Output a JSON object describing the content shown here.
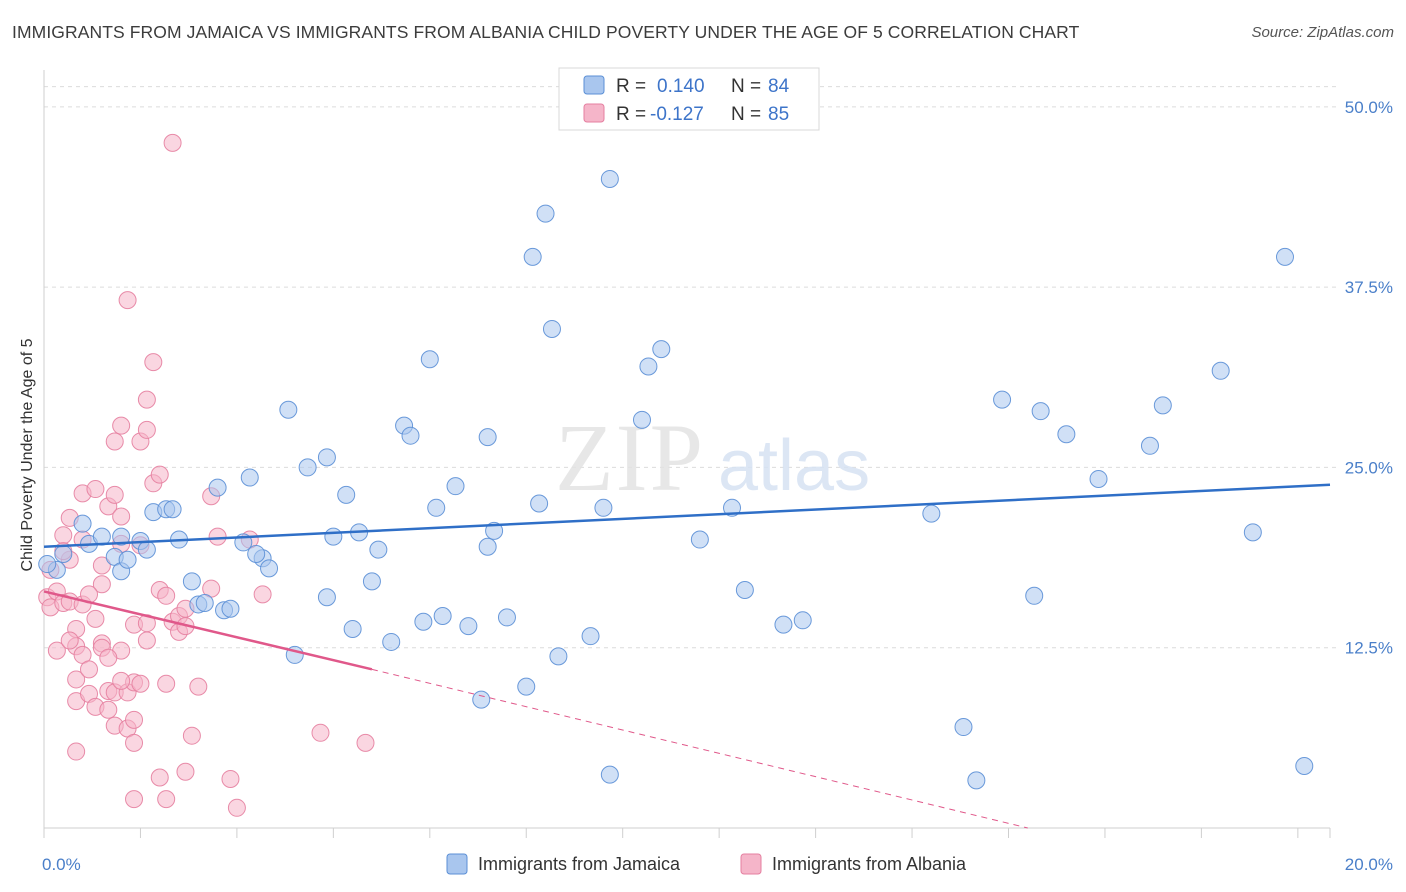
{
  "title": "IMMIGRANTS FROM JAMAICA VS IMMIGRANTS FROM ALBANIA CHILD POVERTY UNDER THE AGE OF 5 CORRELATION CHART",
  "source": "Source: ZipAtlas.com",
  "watermark": {
    "zip": "ZIP",
    "atlas": "atlas"
  },
  "legend": {
    "jamaica": {
      "r_label": "R = ",
      "r_value": "0.140",
      "n_label": "N = ",
      "n_value": "84"
    },
    "albania": {
      "r_label": "R = ",
      "r_value": "-0.127",
      "n_label": "N = ",
      "n_value": "85"
    }
  },
  "colors": {
    "jamaica_fill": "#a9c6ee",
    "jamaica_stroke": "#5b8fd6",
    "jamaica_line": "#2f6fc7",
    "albania_fill": "#f5b5c9",
    "albania_stroke": "#e57fa0",
    "albania_line": "#e0588a",
    "tick_label": "#4a7fc9",
    "grid": "#dcdcdc"
  },
  "chart_data": {
    "type": "scatter",
    "title": "IMMIGRANTS FROM JAMAICA VS IMMIGRANTS FROM ALBANIA CHILD POVERTY UNDER THE AGE OF 5 CORRELATION CHART",
    "xlabel": "",
    "ylabel": "Child Poverty Under the Age of 5",
    "xlim": [
      0,
      20
    ],
    "ylim": [
      0,
      52
    ],
    "x_tick_labels": [
      {
        "value": 0,
        "label": "0.0%"
      },
      {
        "value": 20,
        "label": "20.0%"
      }
    ],
    "y_tick_labels": [
      {
        "value": 12.5,
        "label": "12.5%"
      },
      {
        "value": 25,
        "label": "25.0%"
      },
      {
        "value": 37.5,
        "label": "37.5%"
      },
      {
        "value": 50,
        "label": "50.0%"
      }
    ],
    "grid": true,
    "legend_position": "top-center",
    "series": [
      {
        "name": "Immigrants from Jamaica",
        "trendline": {
          "x": [
            0,
            20
          ],
          "y": [
            19.5,
            23.8
          ]
        },
        "points": [
          [
            0.2,
            17.9
          ],
          [
            0.3,
            19.0
          ],
          [
            0.6,
            21.1
          ],
          [
            0.7,
            19.7
          ],
          [
            0.9,
            20.2
          ],
          [
            1.1,
            18.8
          ],
          [
            1.2,
            17.8
          ],
          [
            1.2,
            20.2
          ],
          [
            1.5,
            19.9
          ],
          [
            1.6,
            19.3
          ],
          [
            1.7,
            21.9
          ],
          [
            1.9,
            22.1
          ],
          [
            2.0,
            22.1
          ],
          [
            2.1,
            20.0
          ],
          [
            2.3,
            17.1
          ],
          [
            2.4,
            15.5
          ],
          [
            2.5,
            15.6
          ],
          [
            2.8,
            15.1
          ],
          [
            2.9,
            15.2
          ],
          [
            2.7,
            23.6
          ],
          [
            3.1,
            19.8
          ],
          [
            3.2,
            24.3
          ],
          [
            3.4,
            18.7
          ],
          [
            3.5,
            18.0
          ],
          [
            3.8,
            29.0
          ],
          [
            3.9,
            12.0
          ],
          [
            4.1,
            25.0
          ],
          [
            4.4,
            16.0
          ],
          [
            4.4,
            25.7
          ],
          [
            4.5,
            20.2
          ],
          [
            4.7,
            23.1
          ],
          [
            4.8,
            13.8
          ],
          [
            4.9,
            20.5
          ],
          [
            5.1,
            17.1
          ],
          [
            5.2,
            19.3
          ],
          [
            5.4,
            12.9
          ],
          [
            5.6,
            27.9
          ],
          [
            5.7,
            27.2
          ],
          [
            5.9,
            14.3
          ],
          [
            6.0,
            32.5
          ],
          [
            6.1,
            22.2
          ],
          [
            6.2,
            14.7
          ],
          [
            6.4,
            23.7
          ],
          [
            6.6,
            14.0
          ],
          [
            6.9,
            19.5
          ],
          [
            6.9,
            27.1
          ],
          [
            7.0,
            20.6
          ],
          [
            7.2,
            14.6
          ],
          [
            7.5,
            9.8
          ],
          [
            7.6,
            39.6
          ],
          [
            7.7,
            22.5
          ],
          [
            7.8,
            42.6
          ],
          [
            7.9,
            34.6
          ],
          [
            8.0,
            11.9
          ],
          [
            8.5,
            13.3
          ],
          [
            8.7,
            22.2
          ],
          [
            8.8,
            3.7
          ],
          [
            8.8,
            45.0
          ],
          [
            9.3,
            28.3
          ],
          [
            9.4,
            32.0
          ],
          [
            9.6,
            33.2
          ],
          [
            10.2,
            20.0
          ],
          [
            10.7,
            22.2
          ],
          [
            10.9,
            16.5
          ],
          [
            11.5,
            14.1
          ],
          [
            11.8,
            14.4
          ],
          [
            13.8,
            21.8
          ],
          [
            14.3,
            7.0
          ],
          [
            14.5,
            3.3
          ],
          [
            14.9,
            29.7
          ],
          [
            15.4,
            16.1
          ],
          [
            15.5,
            28.9
          ],
          [
            15.9,
            27.3
          ],
          [
            16.4,
            24.2
          ],
          [
            17.2,
            26.5
          ],
          [
            17.4,
            29.3
          ],
          [
            18.3,
            31.7
          ],
          [
            18.8,
            20.5
          ],
          [
            19.3,
            39.6
          ],
          [
            19.6,
            4.3
          ],
          [
            0.05,
            18.3
          ],
          [
            6.8,
            8.9
          ],
          [
            1.3,
            18.6
          ],
          [
            3.3,
            19.0
          ]
        ]
      },
      {
        "name": "Immigrants from Albania",
        "trendline": {
          "x": [
            0,
            5.1
          ],
          "y": [
            16.4,
            11.0
          ]
        },
        "trendline_dashed": {
          "x": [
            5.1,
            15.3
          ],
          "y": [
            11.0,
            0.0
          ]
        },
        "points": [
          [
            0.05,
            16.0
          ],
          [
            0.1,
            15.3
          ],
          [
            0.1,
            17.9
          ],
          [
            0.2,
            16.4
          ],
          [
            0.2,
            12.3
          ],
          [
            0.3,
            15.6
          ],
          [
            0.3,
            20.3
          ],
          [
            0.4,
            21.5
          ],
          [
            0.4,
            18.6
          ],
          [
            0.4,
            15.7
          ],
          [
            0.5,
            13.8
          ],
          [
            0.5,
            12.6
          ],
          [
            0.5,
            8.8
          ],
          [
            0.5,
            10.3
          ],
          [
            0.5,
            5.3
          ],
          [
            0.6,
            23.2
          ],
          [
            0.6,
            20.0
          ],
          [
            0.6,
            15.5
          ],
          [
            0.6,
            12.0
          ],
          [
            0.7,
            11.0
          ],
          [
            0.7,
            9.3
          ],
          [
            0.8,
            8.4
          ],
          [
            0.8,
            14.5
          ],
          [
            0.8,
            23.5
          ],
          [
            0.9,
            12.8
          ],
          [
            0.9,
            18.2
          ],
          [
            0.9,
            16.9
          ],
          [
            0.9,
            12.5
          ],
          [
            1.0,
            22.3
          ],
          [
            1.0,
            9.5
          ],
          [
            1.0,
            8.2
          ],
          [
            1.1,
            9.4
          ],
          [
            1.1,
            7.1
          ],
          [
            1.1,
            26.8
          ],
          [
            1.1,
            23.1
          ],
          [
            1.2,
            19.7
          ],
          [
            1.2,
            12.3
          ],
          [
            1.2,
            21.6
          ],
          [
            1.2,
            27.9
          ],
          [
            1.3,
            9.4
          ],
          [
            1.3,
            6.9
          ],
          [
            1.3,
            36.6
          ],
          [
            1.4,
            14.1
          ],
          [
            1.4,
            10.1
          ],
          [
            1.4,
            7.5
          ],
          [
            1.4,
            5.9
          ],
          [
            1.4,
            2.0
          ],
          [
            1.5,
            10.0
          ],
          [
            1.5,
            26.8
          ],
          [
            1.5,
            19.6
          ],
          [
            1.6,
            29.7
          ],
          [
            1.6,
            27.6
          ],
          [
            1.6,
            14.2
          ],
          [
            1.6,
            13.0
          ],
          [
            1.7,
            23.9
          ],
          [
            1.7,
            32.3
          ],
          [
            1.8,
            24.5
          ],
          [
            1.8,
            3.5
          ],
          [
            1.8,
            16.5
          ],
          [
            1.9,
            16.1
          ],
          [
            1.9,
            2.0
          ],
          [
            1.9,
            10.0
          ],
          [
            2.0,
            47.5
          ],
          [
            2.0,
            14.3
          ],
          [
            2.1,
            14.7
          ],
          [
            2.1,
            13.6
          ],
          [
            2.2,
            15.2
          ],
          [
            2.2,
            14.0
          ],
          [
            2.2,
            3.9
          ],
          [
            2.3,
            6.4
          ],
          [
            2.4,
            9.8
          ],
          [
            2.6,
            16.6
          ],
          [
            2.6,
            23.0
          ],
          [
            2.9,
            3.4
          ],
          [
            3.0,
            1.4
          ],
          [
            3.2,
            20.0
          ],
          [
            3.4,
            16.2
          ],
          [
            4.3,
            6.6
          ],
          [
            5.0,
            5.9
          ],
          [
            2.7,
            20.2
          ],
          [
            0.3,
            19.2
          ],
          [
            0.7,
            16.2
          ],
          [
            1.2,
            10.2
          ],
          [
            1.0,
            11.8
          ],
          [
            0.4,
            13.0
          ]
        ]
      }
    ]
  },
  "axis": {
    "ylabel": "Child Poverty Under the Age of 5",
    "x_left": "0.0%",
    "x_right": "20.0%",
    "y_ticks": [
      "12.5%",
      "25.0%",
      "37.5%",
      "50.0%"
    ]
  }
}
